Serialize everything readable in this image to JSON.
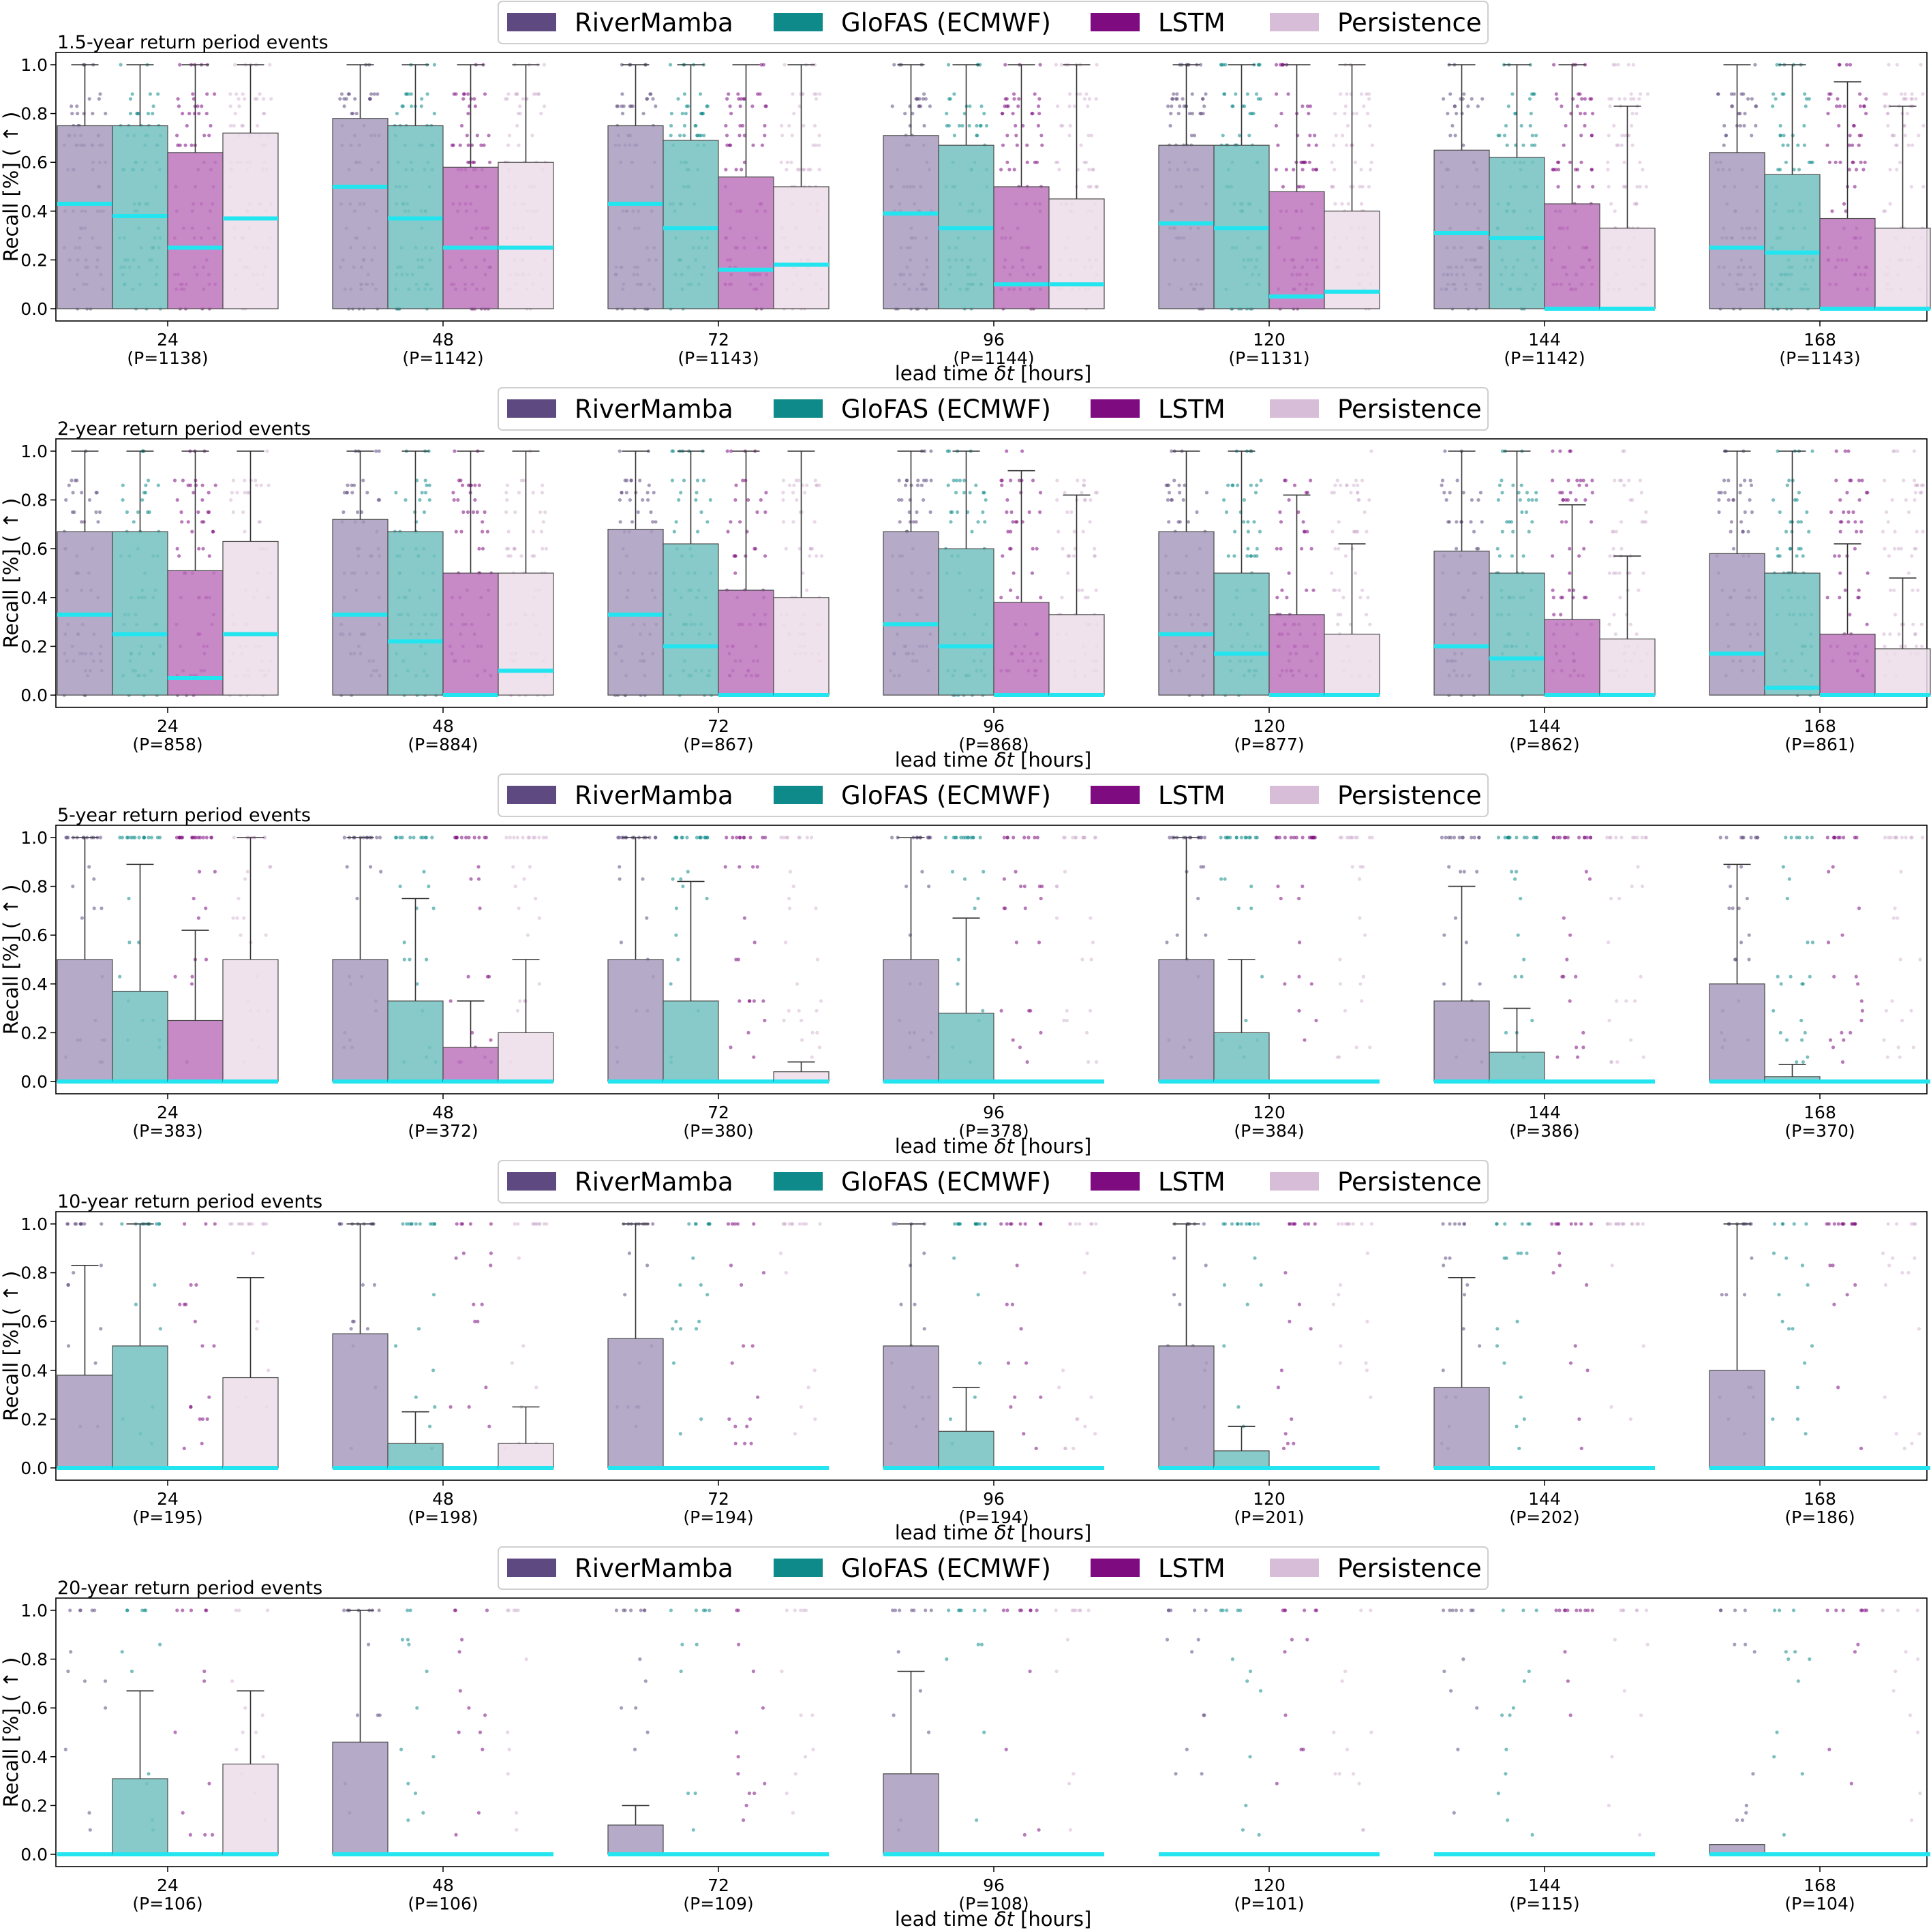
{
  "figure": {
    "xlabel_prefix": "lead time ",
    "xlabel_symbol": "δt",
    "xlabel_suffix": " [hours]",
    "ylabel": "Recall [%] ( ↑ )"
  },
  "legend": [
    {
      "name": "RiverMamba",
      "color": "#5e4a80"
    },
    {
      "name": "GloFAS (ECMWF)",
      "color": "#0e8a8a"
    },
    {
      "name": "LSTM",
      "color": "#7e0c80"
    },
    {
      "name": "Persistence",
      "color": "#d8bdd8"
    }
  ],
  "median_color": "#22e5f0",
  "chart_data": [
    {
      "type": "bar",
      "title": "1.5-year return period events",
      "xlabel": "lead time δt [hours]",
      "ylabel": "Recall [%] ( ↑ )",
      "ylim": [
        0,
        1.0
      ],
      "yticks": [
        "0.0",
        "0.2",
        "0.4",
        "0.6",
        "0.8",
        "1.0"
      ],
      "categories": [
        "24",
        "48",
        "72",
        "96",
        "120",
        "144",
        "168"
      ],
      "counts": [
        "(P=1138)",
        "(P=1142)",
        "(P=1143)",
        "(P=1144)",
        "(P=1131)",
        "(P=1142)",
        "(P=1143)"
      ],
      "series": [
        {
          "name": "RiverMamba",
          "values": [
            0.75,
            0.78,
            0.75,
            0.71,
            0.67,
            0.65,
            0.64
          ],
          "medians": [
            0.43,
            0.5,
            0.43,
            0.39,
            0.35,
            0.31,
            0.25
          ],
          "whiskers": [
            1.0,
            1.0,
            1.0,
            1.0,
            1.0,
            1.0,
            1.0
          ],
          "density": [
            1,
            1,
            1,
            1,
            1,
            1,
            1
          ]
        },
        {
          "name": "GloFAS (ECMWF)",
          "values": [
            0.75,
            0.75,
            0.69,
            0.67,
            0.67,
            0.62,
            0.55
          ],
          "medians": [
            0.38,
            0.37,
            0.33,
            0.33,
            0.33,
            0.29,
            0.23
          ],
          "whiskers": [
            1.0,
            1.0,
            1.0,
            1.0,
            1.0,
            1.0,
            1.0
          ],
          "density": [
            1,
            1,
            1,
            1,
            1,
            1,
            1
          ]
        },
        {
          "name": "LSTM",
          "values": [
            0.64,
            0.58,
            0.54,
            0.5,
            0.48,
            0.43,
            0.37
          ],
          "medians": [
            0.25,
            0.25,
            0.16,
            0.1,
            0.05,
            0.0,
            0.0
          ],
          "whiskers": [
            1.0,
            1.0,
            1.0,
            1.0,
            1.0,
            1.0,
            0.93
          ],
          "density": [
            1,
            1,
            1,
            1,
            1,
            1,
            1
          ]
        },
        {
          "name": "Persistence",
          "values": [
            0.72,
            0.6,
            0.5,
            0.45,
            0.4,
            0.33,
            0.33
          ],
          "medians": [
            0.37,
            0.25,
            0.18,
            0.1,
            0.07,
            0.0,
            0.0
          ],
          "whiskers": [
            1.0,
            1.0,
            1.0,
            1.0,
            1.0,
            0.83,
            0.83
          ],
          "density": [
            1,
            1,
            1,
            1,
            1,
            1,
            1
          ]
        }
      ]
    },
    {
      "type": "bar",
      "title": "2-year return period events",
      "xlabel": "lead time δt [hours]",
      "ylabel": "Recall [%] ( ↑ )",
      "ylim": [
        0,
        1.0
      ],
      "yticks": [
        "0.0",
        "0.2",
        "0.4",
        "0.6",
        "0.8",
        "1.0"
      ],
      "categories": [
        "24",
        "48",
        "72",
        "96",
        "120",
        "144",
        "168"
      ],
      "counts": [
        "(P=858)",
        "(P=884)",
        "(P=867)",
        "(P=868)",
        "(P=877)",
        "(P=862)",
        "(P=861)"
      ],
      "series": [
        {
          "name": "RiverMamba",
          "values": [
            0.67,
            0.72,
            0.68,
            0.67,
            0.67,
            0.59,
            0.58
          ],
          "medians": [
            0.33,
            0.33,
            0.33,
            0.29,
            0.25,
            0.2,
            0.17
          ],
          "whiskers": [
            1.0,
            1.0,
            1.0,
            1.0,
            1.0,
            1.0,
            1.0
          ],
          "density": [
            0.8,
            0.8,
            0.8,
            0.8,
            0.8,
            0.8,
            0.8
          ]
        },
        {
          "name": "GloFAS (ECMWF)",
          "values": [
            0.67,
            0.67,
            0.62,
            0.6,
            0.5,
            0.5,
            0.5
          ],
          "medians": [
            0.25,
            0.22,
            0.2,
            0.2,
            0.17,
            0.15,
            0.03
          ],
          "whiskers": [
            1.0,
            1.0,
            1.0,
            1.0,
            1.0,
            1.0,
            1.0
          ],
          "density": [
            0.8,
            0.8,
            0.8,
            0.8,
            0.8,
            0.8,
            0.8
          ]
        },
        {
          "name": "LSTM",
          "values": [
            0.51,
            0.5,
            0.43,
            0.38,
            0.33,
            0.31,
            0.25
          ],
          "medians": [
            0.07,
            0.0,
            0.0,
            0.0,
            0.0,
            0.0,
            0.0
          ],
          "whiskers": [
            1.0,
            1.0,
            1.0,
            0.92,
            0.82,
            0.78,
            0.62
          ],
          "density": [
            0.8,
            0.8,
            0.8,
            0.8,
            0.8,
            0.8,
            0.8
          ]
        },
        {
          "name": "Persistence",
          "values": [
            0.63,
            0.5,
            0.4,
            0.33,
            0.25,
            0.23,
            0.19
          ],
          "medians": [
            0.25,
            0.1,
            0.0,
            0.0,
            0.0,
            0.0,
            0.0
          ],
          "whiskers": [
            1.0,
            1.0,
            1.0,
            0.82,
            0.62,
            0.57,
            0.48
          ],
          "density": [
            0.8,
            0.8,
            0.8,
            0.8,
            0.8,
            0.8,
            0.8
          ]
        }
      ]
    },
    {
      "type": "bar",
      "title": "5-year return period events",
      "xlabel": "lead time δt [hours]",
      "ylabel": "Recall [%] ( ↑ )",
      "ylim": [
        0,
        1.0
      ],
      "yticks": [
        "0.0",
        "0.2",
        "0.4",
        "0.6",
        "0.8",
        "1.0"
      ],
      "categories": [
        "24",
        "48",
        "72",
        "96",
        "120",
        "144",
        "168"
      ],
      "counts": [
        "(P=383)",
        "(P=372)",
        "(P=380)",
        "(P=378)",
        "(P=384)",
        "(P=386)",
        "(P=370)"
      ],
      "series": [
        {
          "name": "RiverMamba",
          "values": [
            0.5,
            0.5,
            0.5,
            0.5,
            0.5,
            0.33,
            0.4
          ],
          "medians": [
            0.0,
            0.0,
            0.0,
            0.0,
            0.0,
            0.0,
            0.0
          ],
          "whiskers": [
            1.0,
            1.0,
            1.0,
            1.0,
            1.0,
            0.8,
            0.89
          ],
          "density": [
            0.3,
            0.3,
            0.3,
            0.3,
            0.3,
            0.3,
            0.3
          ]
        },
        {
          "name": "GloFAS (ECMWF)",
          "values": [
            0.37,
            0.33,
            0.33,
            0.28,
            0.2,
            0.12,
            0.02
          ],
          "medians": [
            0.0,
            0.0,
            0.0,
            0.0,
            0.0,
            0.0,
            0.0
          ],
          "whiskers": [
            0.89,
            0.75,
            0.82,
            0.67,
            0.5,
            0.3,
            0.07
          ],
          "density": [
            0.3,
            0.3,
            0.3,
            0.3,
            0.3,
            0.3,
            0.3
          ]
        },
        {
          "name": "LSTM",
          "values": [
            0.25,
            0.14,
            0.0,
            0.0,
            0.0,
            0.0,
            0.0
          ],
          "medians": [
            0.0,
            0.0,
            0.0,
            0.0,
            0.0,
            0.0,
            0.0
          ],
          "whiskers": [
            0.62,
            0.33,
            0.0,
            0.0,
            0.0,
            0.0,
            0.0
          ],
          "density": [
            0.3,
            0.3,
            0.3,
            0.3,
            0.3,
            0.3,
            0.3
          ]
        },
        {
          "name": "Persistence",
          "values": [
            0.5,
            0.2,
            0.04,
            0.0,
            0.0,
            0.0,
            0.0
          ],
          "medians": [
            0.0,
            0.0,
            0.0,
            0.0,
            0.0,
            0.0,
            0.0
          ],
          "whiskers": [
            1.0,
            0.5,
            0.08,
            0.0,
            0.0,
            0.0,
            0.0
          ],
          "density": [
            0.3,
            0.3,
            0.3,
            0.3,
            0.3,
            0.3,
            0.3
          ]
        }
      ]
    },
    {
      "type": "bar",
      "title": "10-year return period events",
      "xlabel": "lead time δt [hours]",
      "ylabel": "Recall [%] ( ↑ )",
      "ylim": [
        0,
        1.0
      ],
      "yticks": [
        "0.0",
        "0.2",
        "0.4",
        "0.6",
        "0.8",
        "1.0"
      ],
      "categories": [
        "24",
        "48",
        "72",
        "96",
        "120",
        "144",
        "168"
      ],
      "counts": [
        "(P=195)",
        "(P=198)",
        "(P=194)",
        "(P=194)",
        "(P=201)",
        "(P=202)",
        "(P=186)"
      ],
      "series": [
        {
          "name": "RiverMamba",
          "values": [
            0.38,
            0.55,
            0.53,
            0.5,
            0.5,
            0.33,
            0.4
          ],
          "medians": [
            0.0,
            0.0,
            0.0,
            0.0,
            0.0,
            0.0,
            0.0
          ],
          "whiskers": [
            0.83,
            1.0,
            1.0,
            1.0,
            1.0,
            0.78,
            1.0
          ],
          "density": [
            0.18,
            0.18,
            0.18,
            0.18,
            0.18,
            0.18,
            0.18
          ]
        },
        {
          "name": "GloFAS (ECMWF)",
          "values": [
            0.5,
            0.1,
            0.0,
            0.15,
            0.07,
            0.0,
            0.0
          ],
          "medians": [
            0.0,
            0.0,
            0.0,
            0.0,
            0.0,
            0.0,
            0.0
          ],
          "whiskers": [
            1.0,
            0.23,
            0.0,
            0.33,
            0.17,
            0.0,
            0.0
          ],
          "density": [
            0.18,
            0.18,
            0.18,
            0.18,
            0.18,
            0.18,
            0.18
          ]
        },
        {
          "name": "LSTM",
          "values": [
            0.0,
            0.0,
            0.0,
            0.0,
            0.0,
            0.0,
            0.0
          ],
          "medians": [
            0.0,
            0.0,
            0.0,
            0.0,
            0.0,
            0.0,
            0.0
          ],
          "whiskers": [
            0.0,
            0.0,
            0.0,
            0.0,
            0.0,
            0.0,
            0.0
          ],
          "density": [
            0.18,
            0.18,
            0.18,
            0.18,
            0.18,
            0.18,
            0.18
          ]
        },
        {
          "name": "Persistence",
          "values": [
            0.37,
            0.1,
            0.0,
            0.0,
            0.0,
            0.0,
            0.0
          ],
          "medians": [
            0.0,
            0.0,
            0.0,
            0.0,
            0.0,
            0.0,
            0.0
          ],
          "whiskers": [
            0.78,
            0.25,
            0.0,
            0.0,
            0.0,
            0.0,
            0.0
          ],
          "density": [
            0.18,
            0.18,
            0.18,
            0.18,
            0.18,
            0.18,
            0.18
          ]
        }
      ]
    },
    {
      "type": "bar",
      "title": "20-year return period events",
      "xlabel": "lead time δt [hours]",
      "ylabel": "Recall [%] ( ↑ )",
      "ylim": [
        0,
        1.0
      ],
      "yticks": [
        "0.0",
        "0.2",
        "0.4",
        "0.6",
        "0.8",
        "1.0"
      ],
      "categories": [
        "24",
        "48",
        "72",
        "96",
        "120",
        "144",
        "168"
      ],
      "counts": [
        "(P=106)",
        "(P=106)",
        "(P=109)",
        "(P=108)",
        "(P=101)",
        "(P=115)",
        "(P=104)"
      ],
      "series": [
        {
          "name": "RiverMamba",
          "values": [
            0.0,
            0.46,
            0.12,
            0.33,
            0.0,
            0.0,
            0.04
          ],
          "medians": [
            0.0,
            0.0,
            0.0,
            0.0,
            0.0,
            0.0,
            0.0
          ],
          "whiskers": [
            0.0,
            1.0,
            0.2,
            0.75,
            0.0,
            0.0,
            0.0
          ],
          "density": [
            0.1,
            0.1,
            0.1,
            0.1,
            0.1,
            0.1,
            0.1
          ]
        },
        {
          "name": "GloFAS (ECMWF)",
          "values": [
            0.31,
            0.0,
            0.0,
            0.0,
            0.0,
            0.0,
            0.0
          ],
          "medians": [
            0.0,
            0.0,
            0.0,
            0.0,
            0.0,
            0.0,
            0.0
          ],
          "whiskers": [
            0.67,
            0.0,
            0.0,
            0.0,
            0.0,
            0.0,
            0.0
          ],
          "density": [
            0.1,
            0.1,
            0.1,
            0.1,
            0.1,
            0.1,
            0.1
          ]
        },
        {
          "name": "LSTM",
          "values": [
            0.0,
            0.0,
            0.0,
            0.0,
            0.0,
            0.0,
            0.0
          ],
          "medians": [
            0.0,
            0.0,
            0.0,
            0.0,
            0.0,
            0.0,
            0.0
          ],
          "whiskers": [
            0.0,
            0.0,
            0.0,
            0.0,
            0.0,
            0.0,
            0.0
          ],
          "density": [
            0.1,
            0.1,
            0.1,
            0.1,
            0.1,
            0.1,
            0.1
          ]
        },
        {
          "name": "Persistence",
          "values": [
            0.37,
            0.0,
            0.0,
            0.0,
            0.0,
            0.0,
            0.0
          ],
          "medians": [
            0.0,
            0.0,
            0.0,
            0.0,
            0.0,
            0.0,
            0.0
          ],
          "whiskers": [
            0.67,
            0.0,
            0.0,
            0.0,
            0.0,
            0.0,
            0.0
          ],
          "density": [
            0.1,
            0.1,
            0.1,
            0.1,
            0.1,
            0.1,
            0.1
          ]
        }
      ]
    }
  ]
}
